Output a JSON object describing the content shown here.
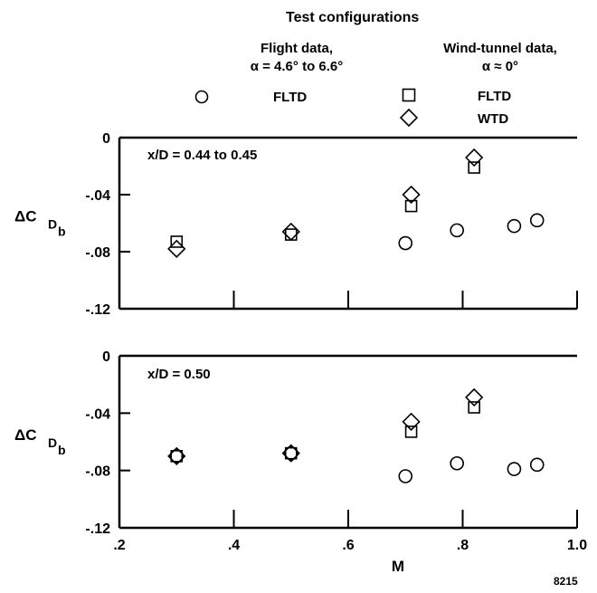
{
  "legend": {
    "title": "Test configurations",
    "flight_header": [
      "Flight data,",
      "α = 4.6° to 6.6°"
    ],
    "wind_header": [
      "Wind-tunnel data,",
      "α ≈ 0°"
    ],
    "entries": [
      {
        "symbol": "circle-icon",
        "label": "FLTD"
      },
      {
        "symbol": "square-icon",
        "label": "FLTD"
      },
      {
        "symbol": "diamond-icon",
        "label": "WTD"
      }
    ]
  },
  "figure_id": "8215",
  "chart_data": [
    {
      "type": "scatter",
      "annotation": "x/D = 0.44 to 0.45",
      "xlabel": "M",
      "ylabel": "ΔC",
      "ylabel_sub": "D",
      "ylabel_subsub": "b",
      "xlim": [
        0.2,
        1.0
      ],
      "ylim": [
        -0.12,
        0
      ],
      "xticks": [
        ".2",
        ".4",
        ".6",
        ".8",
        "1.0"
      ],
      "yticks": [
        "0",
        "-.04",
        "-.08",
        "-.12"
      ],
      "series": [
        {
          "marker": "circle",
          "x": [
            0.7,
            0.79,
            0.89,
            0.93
          ],
          "y": [
            -0.074,
            -0.065,
            -0.062,
            -0.058
          ]
        },
        {
          "marker": "square",
          "x": [
            0.3,
            0.5,
            0.71,
            0.82
          ],
          "y": [
            -0.073,
            -0.068,
            -0.048,
            -0.021
          ]
        },
        {
          "marker": "diamond",
          "x": [
            0.3,
            0.5,
            0.71,
            0.82
          ],
          "y": [
            -0.078,
            -0.066,
            -0.04,
            -0.014
          ]
        }
      ]
    },
    {
      "type": "scatter",
      "annotation": "x/D = 0.50",
      "xlabel": "M",
      "ylabel": "ΔC",
      "ylabel_sub": "D",
      "ylabel_subsub": "b",
      "xlim": [
        0.2,
        1.0
      ],
      "ylim": [
        -0.12,
        0
      ],
      "xticks": [
        ".2",
        ".4",
        ".6",
        ".8",
        "1.0"
      ],
      "yticks": [
        "0",
        "-.04",
        "-.08",
        "-.12"
      ],
      "series": [
        {
          "marker": "circle",
          "x": [
            0.3,
            0.5,
            0.7,
            0.79,
            0.89,
            0.93
          ],
          "y": [
            -0.07,
            -0.068,
            -0.084,
            -0.075,
            -0.079,
            -0.076
          ]
        },
        {
          "marker": "square",
          "x": [
            0.3,
            0.5,
            0.71,
            0.82
          ],
          "y": [
            -0.07,
            -0.068,
            -0.053,
            -0.036
          ]
        },
        {
          "marker": "diamond",
          "x": [
            0.3,
            0.5,
            0.71,
            0.82
          ],
          "y": [
            -0.07,
            -0.068,
            -0.046,
            -0.029
          ]
        }
      ]
    }
  ]
}
